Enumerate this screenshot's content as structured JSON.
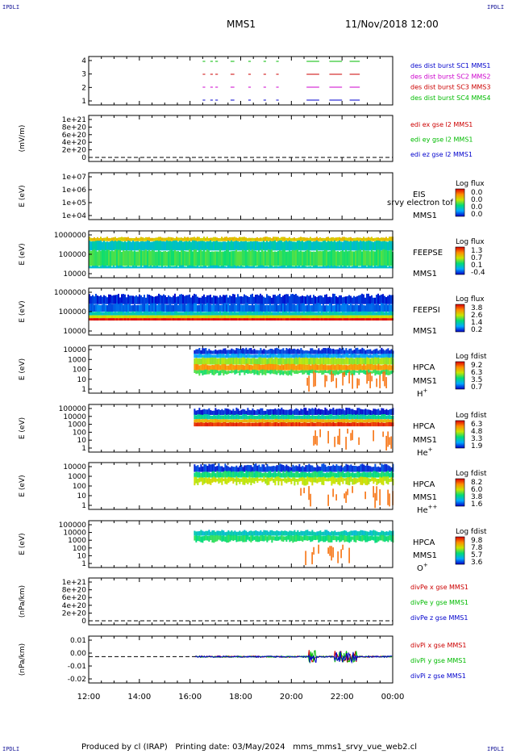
{
  "corners": {
    "tl": "IPDLI",
    "tr": "IPDLI",
    "bl": "IPDLI",
    "br": "IPDLI"
  },
  "header": {
    "spacecraft": "MMS1",
    "datetime": "11/Nov/2018 12:00"
  },
  "footer": {
    "text": "Produced by cl (IRAP)   Printing date: 03/May/2024   mms_mms1_srvy_vue_web2.cl"
  },
  "time_axis": {
    "ticks": [
      "12:00",
      "14:00",
      "16:00",
      "18:00",
      "20:00",
      "22:00",
      "00:00"
    ]
  },
  "chart_data": [
    {
      "id": "burst",
      "type": "scatter",
      "ytick_labels": [
        "4",
        "3",
        "2",
        "1"
      ],
      "series": [
        {
          "name": "des dist burst SC1 MMS1",
          "color": "#0000cc",
          "y": 1
        },
        {
          "name": "des dist burst SC2 MMS2",
          "color": "#cc00cc",
          "y": 2
        },
        {
          "name": "des dist burst SC3 MMS3",
          "color": "#cc0000",
          "y": 3
        },
        {
          "name": "des dist burst SC4 MMS4",
          "color": "#00bb00",
          "y": 4
        }
      ],
      "intervals": [
        [
          16.5,
          16.6
        ],
        [
          16.8,
          16.9
        ],
        [
          17.0,
          17.1
        ],
        [
          17.6,
          17.75
        ],
        [
          18.3,
          18.4
        ],
        [
          18.9,
          19.0
        ],
        [
          19.4,
          19.5
        ],
        [
          20.6,
          21.1
        ],
        [
          21.5,
          22.0
        ],
        [
          22.3,
          22.7
        ]
      ]
    },
    {
      "id": "edi",
      "type": "line",
      "ylabel": "(mV/m)",
      "ytick_labels": [
        "1e+21",
        "8e+20",
        "6e+20",
        "4e+20",
        "2e+20",
        "0"
      ],
      "series": [
        {
          "name": "edi ex gse l2 MMS1",
          "color": "#cc0000"
        },
        {
          "name": "edi ey gse l2 MMS1",
          "color": "#00bb00"
        },
        {
          "name": "edi ez gse l2 MMS1",
          "color": "#0000cc"
        }
      ]
    },
    {
      "id": "eis",
      "type": "heatmap",
      "ylabel": "E (eV)",
      "ytick_labels": [
        "1e+07",
        "1e+06",
        "1e+05",
        "1e+04"
      ],
      "instrument": "EIS",
      "extra_label": "srvy electron tof",
      "spacecraft": "MMS1",
      "colorbar": {
        "title": "Log flux",
        "ticks": [
          "0.0",
          "0.0",
          "0.0",
          "0.0"
        ]
      }
    },
    {
      "id": "feepse",
      "type": "heatmap",
      "ylabel": "E (eV)",
      "ytick_labels": [
        "1000000",
        "100000",
        "10000"
      ],
      "instrument": "FEEPSE",
      "spacecraft": "MMS1",
      "colorbar": {
        "title": "Log flux",
        "ticks": [
          "1.3",
          "0.7",
          "0.1",
          "-0.4"
        ]
      }
    },
    {
      "id": "feepsi",
      "type": "heatmap",
      "ylabel": "E (eV)",
      "ytick_labels": [
        "1000000",
        "100000",
        "10000"
      ],
      "instrument": "FEEPSI",
      "spacecraft": "MMS1",
      "colorbar": {
        "title": "Log flux",
        "ticks": [
          "3.8",
          "2.6",
          "1.4",
          "0.2"
        ]
      }
    },
    {
      "id": "hpca_h",
      "type": "heatmap",
      "ylabel": "E (eV)",
      "ytick_labels": [
        "10000",
        "1000",
        "100",
        "10",
        "1"
      ],
      "instrument": "HPCA",
      "spacecraft": "MMS1",
      "species": "H",
      "charge": "+",
      "colorbar": {
        "title": "Log fdist",
        "ticks": [
          "9.2",
          "6.3",
          "3.5",
          "0.7"
        ]
      }
    },
    {
      "id": "hpca_he",
      "type": "heatmap",
      "ylabel": "E (eV)",
      "ytick_labels": [
        "100000",
        "10000",
        "1000",
        "100",
        "10",
        "1"
      ],
      "instrument": "HPCA",
      "spacecraft": "MMS1",
      "species": "He",
      "charge": "+",
      "colorbar": {
        "title": "Log fdist",
        "ticks": [
          "6.3",
          "4.8",
          "3.3",
          "1.9"
        ]
      }
    },
    {
      "id": "hpca_he2",
      "type": "heatmap",
      "ylabel": "E (eV)",
      "ytick_labels": [
        "10000",
        "1000",
        "100",
        "10",
        "1"
      ],
      "instrument": "HPCA",
      "spacecraft": "MMS1",
      "species": "He",
      "charge": "++",
      "colorbar": {
        "title": "Log fdist",
        "ticks": [
          "8.2",
          "6.0",
          "3.8",
          "1.6"
        ]
      }
    },
    {
      "id": "hpca_o",
      "type": "heatmap",
      "ylabel": "E (eV)",
      "ytick_labels": [
        "100000",
        "10000",
        "1000",
        "100",
        "10",
        "1"
      ],
      "instrument": "HPCA",
      "spacecraft": "MMS1",
      "species": "O",
      "charge": "+",
      "colorbar": {
        "title": "Log fdist",
        "ticks": [
          "9.8",
          "7.8",
          "5.7",
          "3.6"
        ]
      }
    },
    {
      "id": "divpe",
      "type": "line",
      "ylabel": "(nPa/km)",
      "ytick_labels": [
        "1e+21",
        "8e+20",
        "6e+20",
        "4e+20",
        "2e+20",
        "0"
      ],
      "series": [
        {
          "name": "divPe x gse MMS1",
          "color": "#cc0000"
        },
        {
          "name": "divPe y gse MMS1",
          "color": "#00bb00"
        },
        {
          "name": "divPe z gse MMS1",
          "color": "#0000cc"
        }
      ]
    },
    {
      "id": "divpi",
      "type": "line",
      "ylabel": "(nPa/km)",
      "ytick_labels": [
        "0.01",
        "0.00",
        "-0.01",
        "-0.02"
      ],
      "series": [
        {
          "name": "divPi x gse MMS1",
          "color": "#cc0000"
        },
        {
          "name": "divPi y gse MMS1",
          "color": "#00bb00"
        },
        {
          "name": "divPi z gse MMS1",
          "color": "#0000cc"
        }
      ]
    }
  ]
}
